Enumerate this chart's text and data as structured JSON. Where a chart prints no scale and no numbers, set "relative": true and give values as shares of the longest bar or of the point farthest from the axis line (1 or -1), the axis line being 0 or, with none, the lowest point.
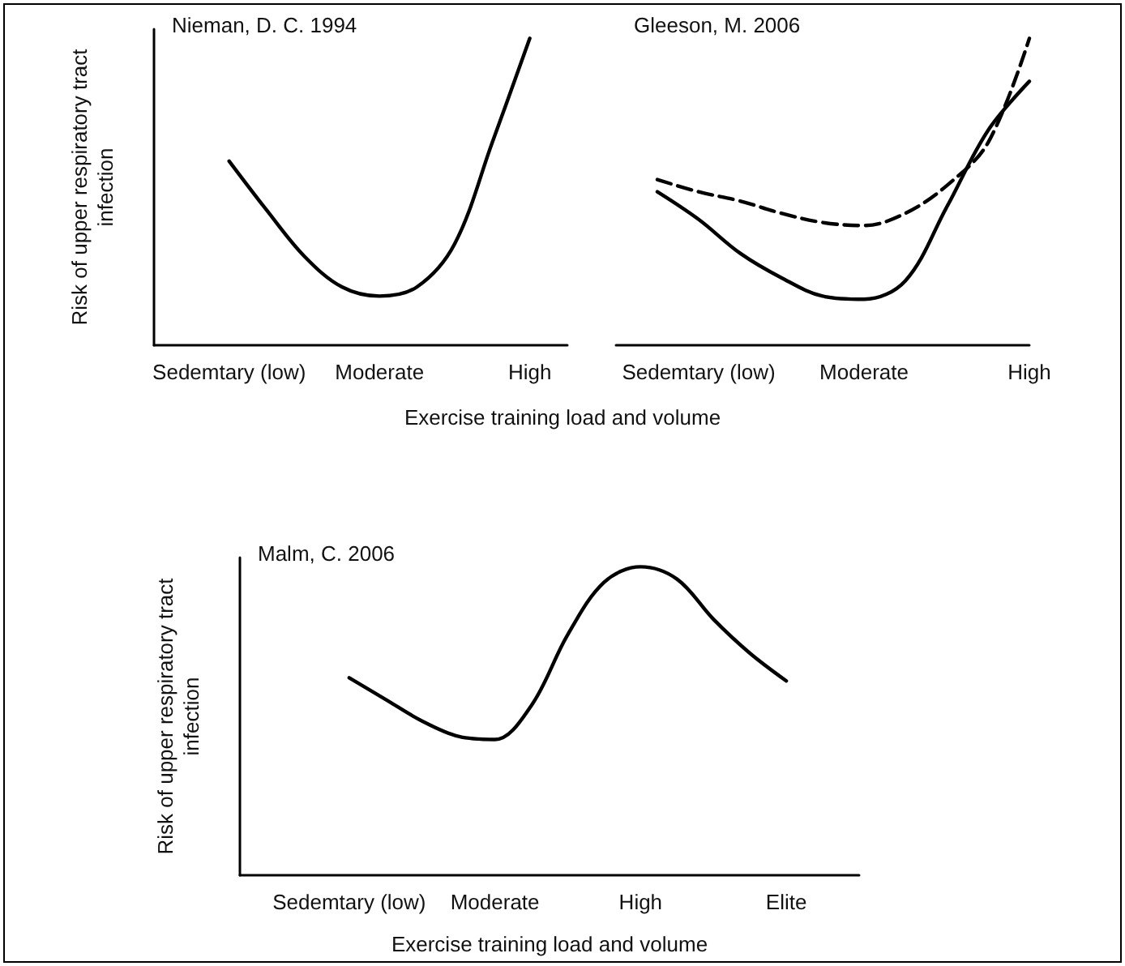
{
  "chart_data": [
    {
      "type": "line",
      "title": "Nieman, D. C. 1994",
      "ylabel": "Risk of upper respiratory tract\ninfection",
      "xlabel": "Exercise training load and volume",
      "relative": true,
      "marker": "none",
      "categories": [
        null,
        null,
        "Sedemtary (low)",
        null,
        null,
        null,
        "Moderate",
        null,
        null,
        null,
        "High",
        null
      ],
      "series": [
        {
          "color": "#000000",
          "line_style": "solid",
          "values": [
            null,
            null,
            0.6,
            0.44,
            0.29,
            0.19,
            0.16,
            0.19,
            0.33,
            0.66,
            1,
            null
          ]
        }
      ]
    },
    {
      "type": "line",
      "title": "Gleeson, M. 2006",
      "relative": true,
      "marker": "none",
      "categories": [
        null,
        null,
        "Sedemtary (low)",
        null,
        null,
        null,
        "Moderate",
        null,
        null,
        null,
        "High"
      ],
      "series": [
        {
          "color": "#000000",
          "line_style": "solid",
          "values": [
            null,
            0.5,
            0.41,
            0.3,
            0.22,
            0.16,
            0.15,
            0.21,
            0.45,
            0.7,
            0.86
          ]
        },
        {
          "color": "#000000",
          "line_style": "dashed",
          "values": [
            null,
            0.54,
            0.5,
            0.47,
            0.43,
            0.4,
            0.39,
            0.43,
            0.52,
            0.66,
            1
          ]
        }
      ]
    },
    {
      "type": "line",
      "title": "Malm, C. 2006",
      "ylabel": "Risk of upper respiratory tract\ninfection",
      "xlabel": "Exercise training load and volume",
      "relative": true,
      "marker": "none",
      "categories": [
        null,
        null,
        null,
        "Sedemtary (low)",
        null,
        null,
        null,
        "Moderate",
        null,
        null,
        null,
        "High",
        null,
        null,
        null,
        "Elite",
        null,
        null
      ],
      "series": [
        {
          "color": "#000000",
          "line_style": "solid",
          "values": [
            null,
            null,
            null,
            0.64,
            0.57,
            0.5,
            0.45,
            0.44,
            0.55,
            0.78,
            0.95,
            1,
            0.96,
            0.83,
            0.72,
            0.63,
            null,
            null
          ]
        }
      ]
    }
  ]
}
